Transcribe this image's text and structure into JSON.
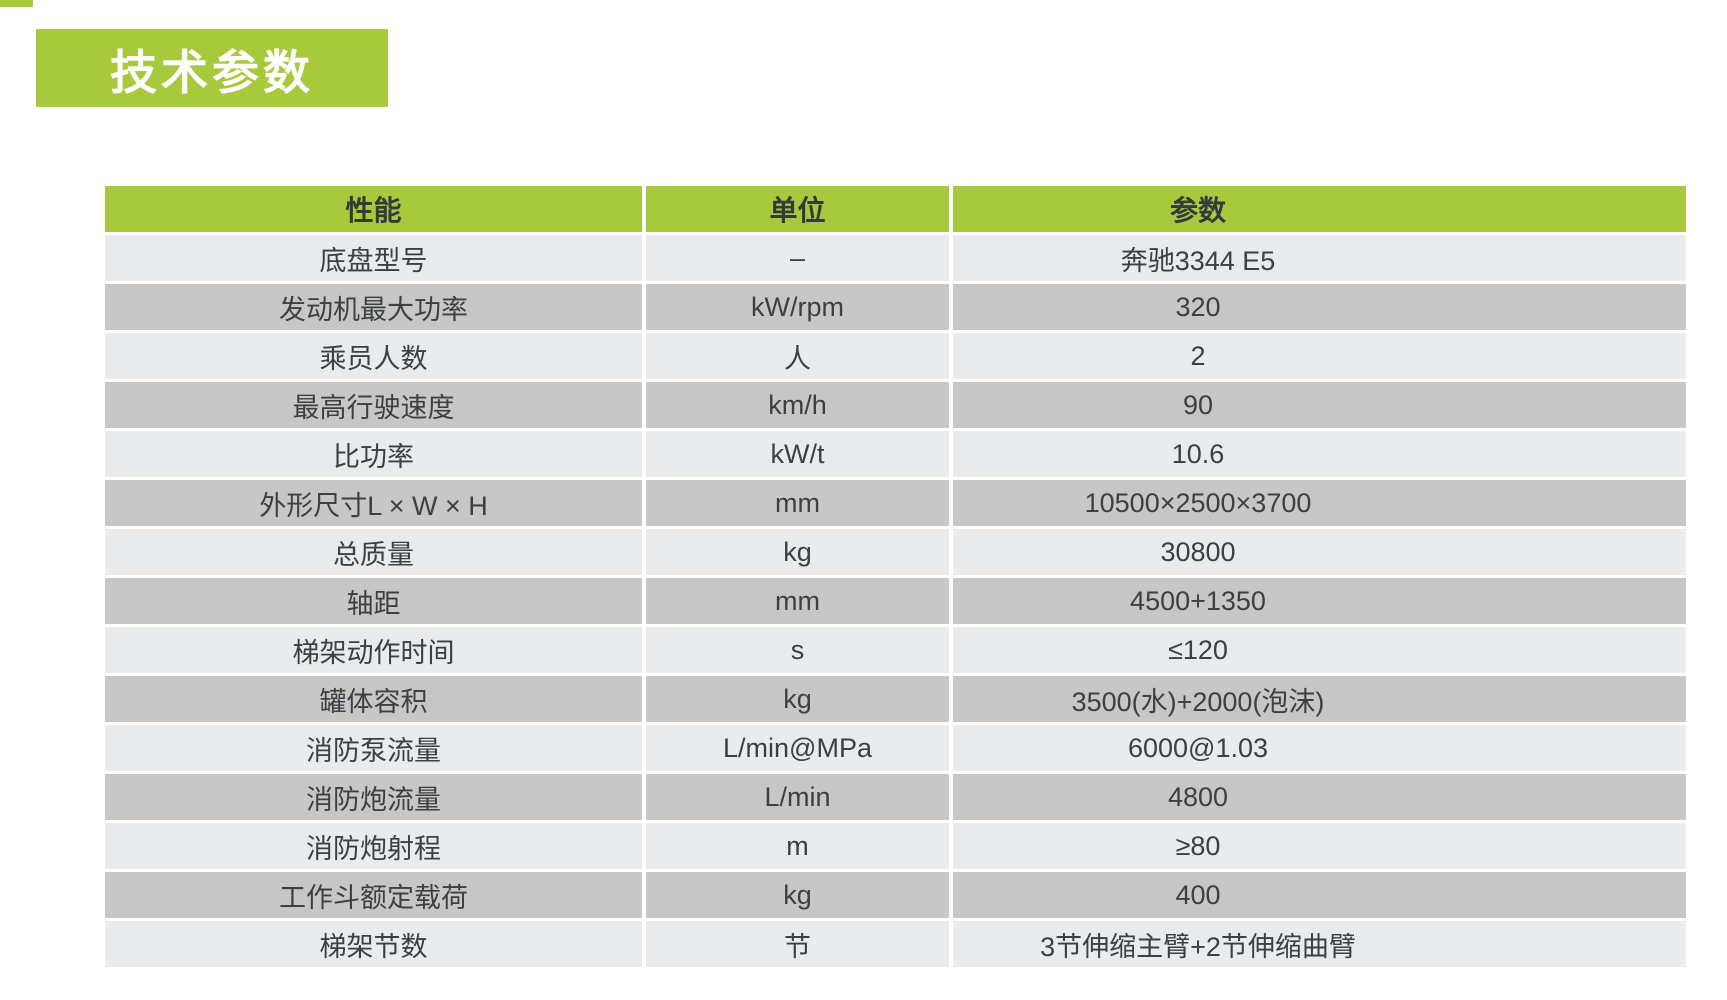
{
  "title_badge": "技术参数",
  "colors": {
    "accent_green": "#a9c93c",
    "row_light": "#eaebec",
    "row_dark": "#c7c7c7",
    "text_dark": "#3c4043",
    "header_text": "#343a3b",
    "badge_text": "#ffffff"
  },
  "table": {
    "headers": [
      "性能",
      "单位",
      "参数"
    ],
    "rows": [
      {
        "name": "底盘型号",
        "unit": "–",
        "value": "奔驰3344 E5"
      },
      {
        "name": "发动机最大功率",
        "unit": "kW/rpm",
        "value": "320"
      },
      {
        "name": "乘员人数",
        "unit": "人",
        "value": "2"
      },
      {
        "name": "最高行驶速度",
        "unit": "km/h",
        "value": "90"
      },
      {
        "name": "比功率",
        "unit": "kW/t",
        "value": "10.6"
      },
      {
        "name": "外形尺寸L × W × H",
        "unit": "mm",
        "value": "10500×2500×3700"
      },
      {
        "name": "总质量",
        "unit": "kg",
        "value": "30800"
      },
      {
        "name": "轴距",
        "unit": "mm",
        "value": "4500+1350"
      },
      {
        "name": "梯架动作时间",
        "unit": "s",
        "value": "≤120"
      },
      {
        "name": "罐体容积",
        "unit": "kg",
        "value": "3500(水)+2000(泡沫)"
      },
      {
        "name": "消防泵流量",
        "unit": "L/min@MPa",
        "value": "6000@1.03"
      },
      {
        "name": "消防炮流量",
        "unit": "L/min",
        "value": "4800"
      },
      {
        "name": "消防炮射程",
        "unit": "m",
        "value": "≥80"
      },
      {
        "name": "工作斗额定载荷",
        "unit": "kg",
        "value": "400"
      },
      {
        "name": "梯架节数",
        "unit": "节",
        "value": "3节伸缩主臂+2节伸缩曲臂"
      }
    ]
  }
}
